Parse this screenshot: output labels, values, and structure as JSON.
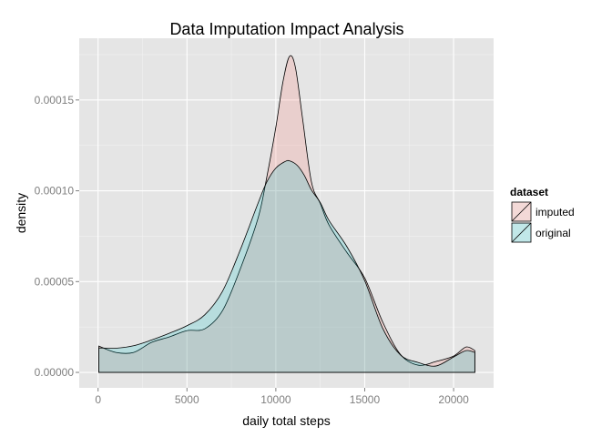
{
  "chart_data": {
    "type": "area",
    "subtype": "density",
    "title": "Data Imputation Impact Analysis",
    "xlabel": "daily total steps",
    "ylabel": "density",
    "xlim": [
      -1060,
      22250
    ],
    "ylim": [
      -8.5e-06,
      0.000184
    ],
    "x_ticks": [
      0,
      5000,
      10000,
      15000,
      20000
    ],
    "x_tick_labels": [
      "0",
      "5000",
      "10000",
      "15000",
      "20000"
    ],
    "y_ticks": [
      0,
      5e-05,
      0.0001,
      0.00015
    ],
    "y_tick_labels": [
      "0.00000",
      "0.00005",
      "0.00010",
      "0.00015"
    ],
    "grid": true,
    "legend": {
      "title": "dataset",
      "placement": "right"
    },
    "series": [
      {
        "name": "imputed",
        "color": "#f8766d",
        "x": [
          41,
          1000,
          2000,
          3000,
          4000,
          5000,
          6000,
          7000,
          8000,
          9000,
          9500,
          10000,
          10400,
          10766,
          11100,
          11500,
          12000,
          12500,
          13000,
          14000,
          15000,
          16000,
          17000,
          18000,
          19000,
          20000,
          20700,
          21194
        ],
        "values": [
          1.45e-05,
          1.1e-05,
          1.1e-05,
          1.65e-05,
          1.95e-05,
          2.3e-05,
          2.4e-05,
          3.4e-05,
          5.7e-05,
          8.5e-05,
          0.000108,
          0.000135,
          0.00016,
          0.000174,
          0.000168,
          0.00014,
          0.000105,
          9.3e-05,
          8.1e-05,
          6.6e-05,
          5.2e-05,
          2.8e-05,
          1e-05,
          4e-06,
          6e-06,
          9e-06,
          1.4e-05,
          1.2e-05
        ]
      },
      {
        "name": "original",
        "color": "#00bfc4",
        "x": [
          41,
          1000,
          2000,
          3000,
          4000,
          5000,
          6000,
          7000,
          8000,
          9000,
          9500,
          10000,
          10500,
          10766,
          11200,
          11600,
          12000,
          12500,
          13000,
          14000,
          15000,
          16000,
          17000,
          18000,
          19000,
          20000,
          20700,
          21194
        ],
        "values": [
          1.35e-05,
          1.33e-05,
          1.47e-05,
          1.78e-05,
          2.15e-05,
          2.57e-05,
          3.17e-05,
          4.47e-05,
          6.75e-05,
          9.32e-05,
          0.000105,
          0.0001125,
          0.000116,
          0.0001165,
          0.000114,
          0.0001085,
          0.0001005,
          9.35e-05,
          8.35e-05,
          6.92e-05,
          5.05e-05,
          2.45e-05,
          9.7e-06,
          5.5e-06,
          3.5e-06,
          8.5e-06,
          1.2e-05,
          1.1e-05
        ]
      }
    ]
  }
}
